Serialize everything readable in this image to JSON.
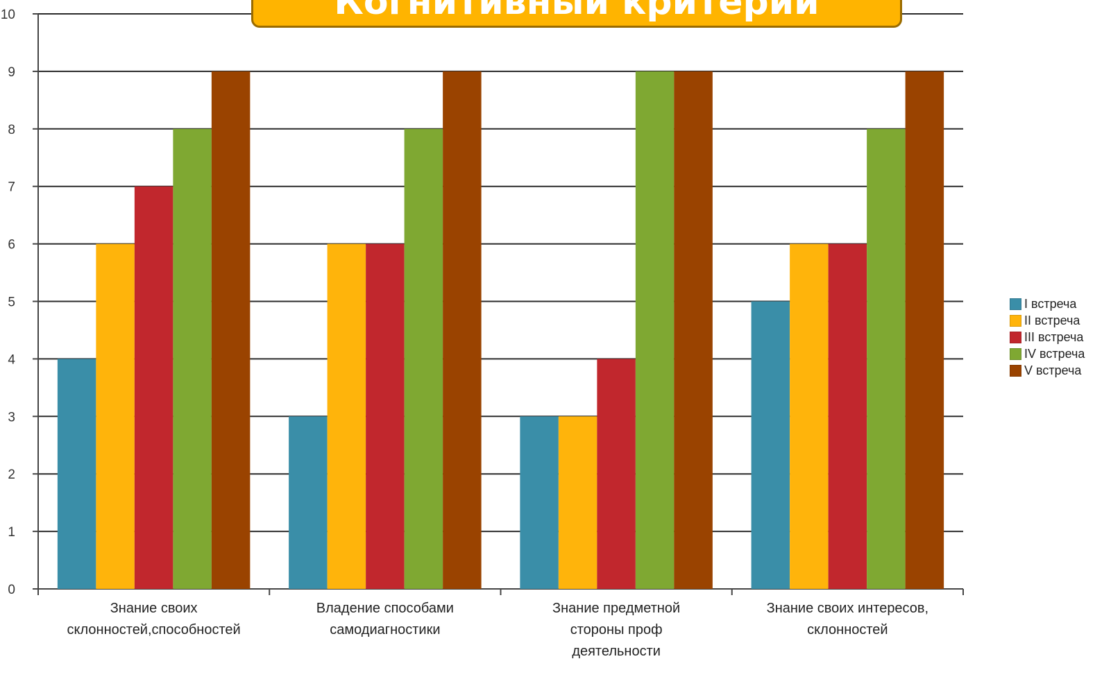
{
  "title": "Когнитивный критерий",
  "chart_data": {
    "type": "bar",
    "title": "Когнитивный критерий",
    "xlabel": "",
    "ylabel": "",
    "ylim": [
      0,
      10
    ],
    "yticks": [
      "0",
      "1",
      "2",
      "3",
      "4",
      "5",
      "6",
      "7",
      "8",
      "9",
      "10"
    ],
    "grid": true,
    "legend_position": "right",
    "categories": [
      [
        "Знание своих",
        "склонностей,способностей"
      ],
      [
        "Владение способами",
        "самодиагностики"
      ],
      [
        "Знание предметной",
        "стороны проф",
        "деятельности"
      ],
      [
        "Знание своих интересов,",
        "склонностей"
      ]
    ],
    "series": [
      {
        "name": "I встреча",
        "color": "#3a8ea8",
        "values": [
          4,
          3,
          3,
          5
        ]
      },
      {
        "name": "II встреча",
        "color": "#ffb40b",
        "values": [
          6,
          6,
          3,
          6
        ]
      },
      {
        "name": "III встреча",
        "color": "#c1272d",
        "values": [
          7,
          6,
          4,
          6
        ]
      },
      {
        "name": "IV встреча",
        "color": "#7fa832",
        "values": [
          8,
          8,
          9,
          8
        ]
      },
      {
        "name": "V встреча",
        "color": "#9a4300",
        "values": [
          9,
          9,
          9,
          9
        ]
      }
    ]
  }
}
